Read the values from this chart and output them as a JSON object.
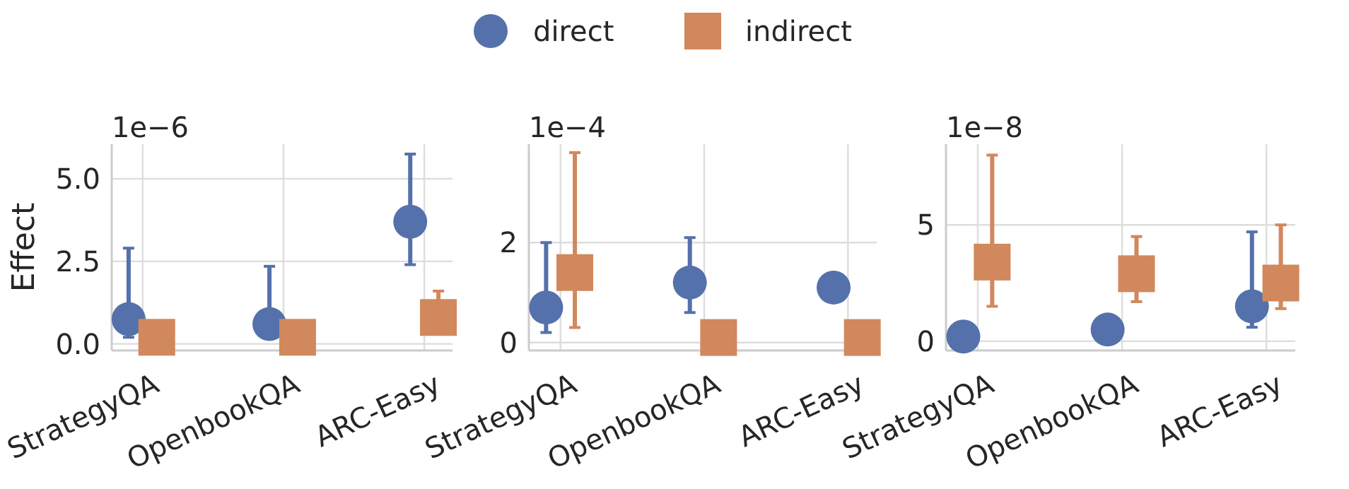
{
  "chart_data": [
    {
      "type": "scatter",
      "ylabel": "Effect",
      "annotations": [
        "1e−6"
      ],
      "categories": [
        "StrategyQA",
        "OpenbookQA",
        "ARC-Easy"
      ],
      "ylim": [
        -0.2,
        6.05
      ],
      "yticks": [
        {
          "value": 0,
          "label": "0.0"
        },
        {
          "value": 2.5,
          "label": "2.5"
        },
        {
          "value": 5,
          "label": "5.0"
        }
      ],
      "grid": true,
      "legend": "top",
      "series": [
        {
          "name": "direct",
          "color": "#5471ab",
          "marker": "circle",
          "values": [
            0.75,
            0.6,
            3.7
          ],
          "errors": [
            [
              0.2,
              2.9
            ],
            [
              0.6,
              2.35
            ],
            [
              2.4,
              5.75
            ]
          ]
        },
        {
          "name": "indirect",
          "color": "#d1885c",
          "marker": "square",
          "values": [
            0.2,
            0.2,
            0.8
          ],
          "errors": [
            null,
            null,
            [
              0.8,
              1.6
            ]
          ]
        }
      ]
    },
    {
      "type": "scatter",
      "annotations": [
        "1e−4"
      ],
      "categories": [
        "StrategyQA",
        "OpenbookQA",
        "ARC-Easy"
      ],
      "ylim": [
        -0.16,
        3.97
      ],
      "yticks": [
        0,
        2
      ],
      "grid": true,
      "series": [
        {
          "name": "direct",
          "color": "#5471ab",
          "marker": "circle",
          "values": [
            0.7,
            1.2,
            1.1
          ],
          "errors": [
            [
              0.2,
              2
            ],
            [
              0.6,
              2.1
            ],
            null
          ]
        },
        {
          "name": "indirect",
          "color": "#d1885c",
          "marker": "square",
          "values": [
            1.4,
            0.1,
            0.1
          ],
          "errors": [
            [
              0.3,
              3.8
            ],
            null,
            null
          ]
        }
      ]
    },
    {
      "type": "scatter",
      "annotations": [
        "1e−8"
      ],
      "categories": [
        "StrategyQA",
        "OpenbookQA",
        "ARC-Easy"
      ],
      "ylim": [
        -0.4,
        8.47
      ],
      "yticks": [
        0,
        5
      ],
      "grid": true,
      "series": [
        {
          "name": "direct",
          "color": "#5471ab",
          "marker": "circle",
          "values": [
            0.2,
            0.5,
            1.5
          ],
          "errors": [
            null,
            null,
            [
              0.6,
              4.7
            ]
          ]
        },
        {
          "name": "indirect",
          "color": "#d1885c",
          "marker": "square",
          "values": [
            3.4,
            2.9,
            2.5
          ],
          "errors": [
            [
              1.5,
              8
            ],
            [
              1.7,
              4.5
            ],
            [
              1.4,
              5
            ]
          ]
        }
      ]
    }
  ]
}
